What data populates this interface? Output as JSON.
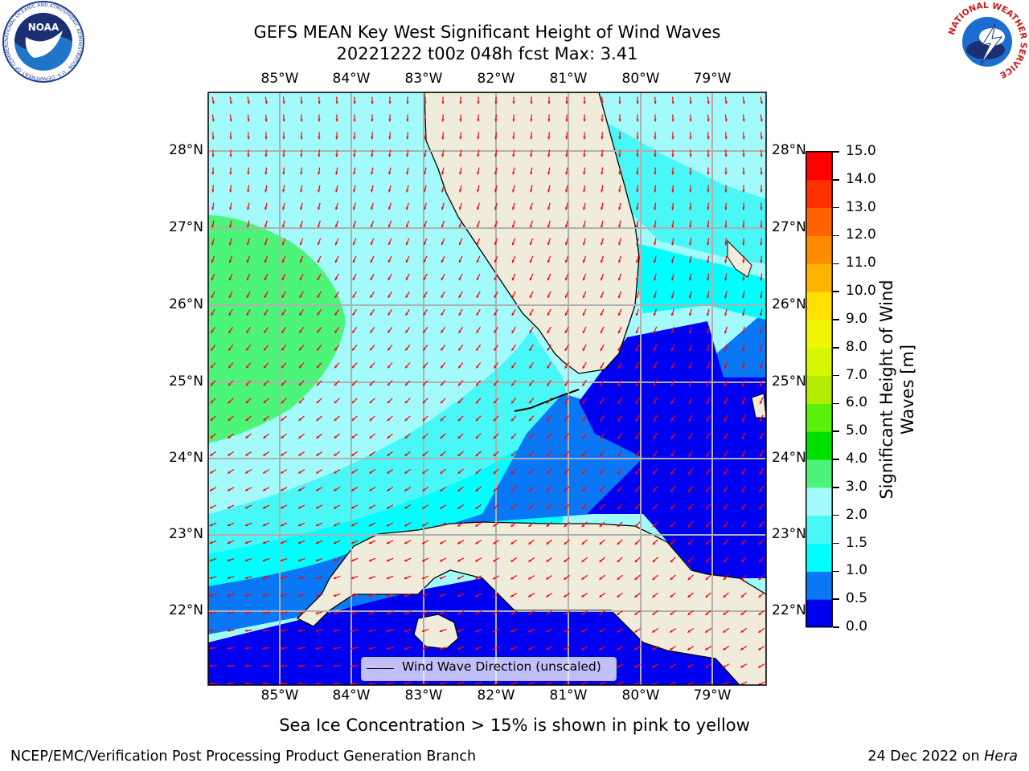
{
  "title": {
    "line1": "GEFS MEAN Key West Significant Height of Wind Waves",
    "line2": "20221222 t00z 048h fcst   Max: 3.41"
  },
  "map": {
    "lon_labels": [
      "85°W",
      "84°W",
      "83°W",
      "82°W",
      "81°W",
      "80°W",
      "79°W"
    ],
    "lat_labels": [
      "28°N",
      "27°N",
      "26°N",
      "25°N",
      "24°N",
      "23°N",
      "22°N"
    ],
    "land_color": "#efecdc",
    "vector_color": "#ff0000"
  },
  "legend": {
    "label": "Wind Wave Direction (unscaled)"
  },
  "colorbar": {
    "label": "Significant Height of Wind Waves [m]",
    "ticks": [
      "0.0",
      "0.5",
      "1.0",
      "1.5",
      "2.0",
      "3.0",
      "4.0",
      "5.0",
      "6.0",
      "7.0",
      "8.0",
      "9.0",
      "10.0",
      "11.0",
      "12.0",
      "13.0",
      "14.0",
      "15.0"
    ],
    "colors": [
      "#0000f0",
      "#0a78f5",
      "#00ffff",
      "#4af7f7",
      "#a3fafa",
      "#4cf57a",
      "#00e000",
      "#5af00a",
      "#b4ec00",
      "#d6f500",
      "#f0f500",
      "#ffe000",
      "#ffb400",
      "#ff8c00",
      "#ff6400",
      "#ff3000",
      "#ff0000"
    ]
  },
  "footer": {
    "note": "Sea Ice Concentration > 15% is shown in pink to yellow",
    "left": "NCEP/EMC/Verification Post Processing Product Generation Branch",
    "right_prefix": "24 Dec 2022 on ",
    "right_host": "Hera"
  },
  "logos": {
    "noaa_text": "NOAA",
    "noaa_ring": "NATIONAL OCEANIC AND ATMOSPHERIC ADMINISTRATION · U.S. DEPARTMENT OF COMMERCE",
    "nws_ring": "NATIONAL WEATHER SERVICE"
  }
}
